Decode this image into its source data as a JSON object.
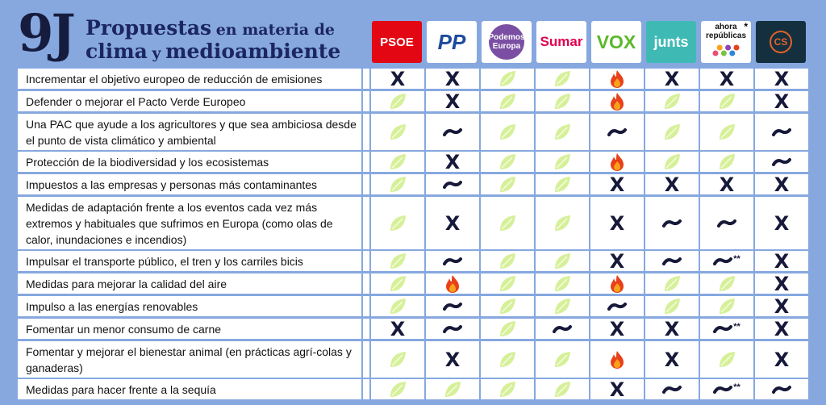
{
  "title": {
    "number": "9J",
    "line1_big": "Propuestas",
    "line1_small": "en materia de",
    "line2_big": "clima",
    "line2_small": "y",
    "line2_big2": "medioambiente"
  },
  "parties": [
    {
      "id": "psoe",
      "name": "PSOE",
      "bg": "#e30613",
      "fg": "#ffffff"
    },
    {
      "id": "pp",
      "name": "PP",
      "bg": "#ffffff",
      "fg": "#1d4b9c"
    },
    {
      "id": "podemos",
      "name": "Podemos Europa",
      "bg": "#ffffff",
      "fg": "#ffffff",
      "accent": "#7a4fa3"
    },
    {
      "id": "sumar",
      "name": "Sumar",
      "bg": "#ffffff",
      "fg": "#e3004f"
    },
    {
      "id": "vox",
      "name": "VOX",
      "bg": "#ffffff",
      "fg": "#5bb82a"
    },
    {
      "id": "junts",
      "name": "junts",
      "bg": "#3fb9b4",
      "fg": "#ffffff"
    },
    {
      "id": "ahora",
      "name": "ahora repúblicas",
      "bg": "#ffffff",
      "fg": "#111111",
      "note": "*"
    },
    {
      "id": "cs",
      "name": "CS",
      "bg": "#14303f",
      "fg": "#e2622a"
    }
  ],
  "legend_symbols": {
    "leaf": "leaf-icon",
    "x": "X",
    "tilde": "tilde-icon",
    "fire": "fire-icon"
  },
  "colors": {
    "leaf": "#d6f09a",
    "leaf_vein": "#f3fbd6",
    "fire": "#e8401a",
    "fire_inner": "#f7a21a",
    "dark": "#17193a"
  },
  "rows": [
    {
      "label": "Incrementar el objetivo europeo de reducción de emisiones",
      "values": [
        {
          "s": "x"
        },
        {
          "s": "x"
        },
        {
          "s": "leaf"
        },
        {
          "s": "leaf"
        },
        {
          "s": "fire"
        },
        {
          "s": "x"
        },
        {
          "s": "x"
        },
        {
          "s": "x"
        }
      ]
    },
    {
      "label": "Defender o mejorar el Pacto Verde Europeo",
      "values": [
        {
          "s": "leaf"
        },
        {
          "s": "x"
        },
        {
          "s": "leaf"
        },
        {
          "s": "leaf"
        },
        {
          "s": "fire"
        },
        {
          "s": "leaf"
        },
        {
          "s": "leaf"
        },
        {
          "s": "x"
        }
      ]
    },
    {
      "label": "Una PAC que ayude a los agricultores y que sea ambiciosa desde el punto de vista climático y ambiental",
      "values": [
        {
          "s": "leaf"
        },
        {
          "s": "tilde"
        },
        {
          "s": "leaf"
        },
        {
          "s": "leaf"
        },
        {
          "s": "tilde"
        },
        {
          "s": "leaf"
        },
        {
          "s": "leaf"
        },
        {
          "s": "tilde"
        }
      ]
    },
    {
      "label": "Protección de la biodiversidad y los ecosistemas",
      "values": [
        {
          "s": "leaf"
        },
        {
          "s": "x"
        },
        {
          "s": "leaf"
        },
        {
          "s": "leaf"
        },
        {
          "s": "fire"
        },
        {
          "s": "leaf"
        },
        {
          "s": "leaf"
        },
        {
          "s": "tilde"
        }
      ]
    },
    {
      "label": "Impuestos a las empresas y personas más contaminantes",
      "values": [
        {
          "s": "leaf"
        },
        {
          "s": "tilde"
        },
        {
          "s": "leaf"
        },
        {
          "s": "leaf"
        },
        {
          "s": "x"
        },
        {
          "s": "x"
        },
        {
          "s": "x"
        },
        {
          "s": "x"
        }
      ]
    },
    {
      "label": "Medidas de adaptación frente a los eventos cada vez más extremos y habituales que sufrimos en Europa (como olas de calor, inundaciones e incendios)",
      "values": [
        {
          "s": "leaf"
        },
        {
          "s": "x"
        },
        {
          "s": "leaf"
        },
        {
          "s": "leaf"
        },
        {
          "s": "x"
        },
        {
          "s": "tilde"
        },
        {
          "s": "tilde"
        },
        {
          "s": "x"
        }
      ]
    },
    {
      "label": "Impulsar el transporte público, el tren y los carriles bicis",
      "values": [
        {
          "s": "leaf"
        },
        {
          "s": "tilde"
        },
        {
          "s": "leaf"
        },
        {
          "s": "leaf"
        },
        {
          "s": "x"
        },
        {
          "s": "tilde"
        },
        {
          "s": "tilde",
          "note": "**"
        },
        {
          "s": "x"
        }
      ]
    },
    {
      "label": "Medidas para mejorar la calidad del aire",
      "values": [
        {
          "s": "leaf"
        },
        {
          "s": "fire"
        },
        {
          "s": "leaf"
        },
        {
          "s": "leaf"
        },
        {
          "s": "fire"
        },
        {
          "s": "leaf"
        },
        {
          "s": "leaf"
        },
        {
          "s": "x"
        }
      ]
    },
    {
      "label": "Impulso a las energías renovables",
      "values": [
        {
          "s": "leaf"
        },
        {
          "s": "tilde"
        },
        {
          "s": "leaf"
        },
        {
          "s": "leaf"
        },
        {
          "s": "tilde"
        },
        {
          "s": "leaf"
        },
        {
          "s": "leaf"
        },
        {
          "s": "x"
        }
      ]
    },
    {
      "label": "Fomentar un menor consumo de carne",
      "values": [
        {
          "s": "x"
        },
        {
          "s": "tilde"
        },
        {
          "s": "leaf"
        },
        {
          "s": "tilde"
        },
        {
          "s": "x"
        },
        {
          "s": "x"
        },
        {
          "s": "tilde",
          "note": "**"
        },
        {
          "s": "x"
        }
      ]
    },
    {
      "label": "Fomentar y mejorar el bienestar animal (en prácticas agrí-colas y ganaderas)",
      "values": [
        {
          "s": "leaf"
        },
        {
          "s": "x"
        },
        {
          "s": "leaf"
        },
        {
          "s": "leaf"
        },
        {
          "s": "fire"
        },
        {
          "s": "x"
        },
        {
          "s": "leaf"
        },
        {
          "s": "x"
        }
      ]
    },
    {
      "label": "Medidas para hacer frente a la sequía",
      "values": [
        {
          "s": "leaf"
        },
        {
          "s": "leaf"
        },
        {
          "s": "leaf"
        },
        {
          "s": "leaf"
        },
        {
          "s": "x"
        },
        {
          "s": "tilde"
        },
        {
          "s": "tilde",
          "note": "**"
        },
        {
          "s": "tilde"
        }
      ]
    }
  ]
}
